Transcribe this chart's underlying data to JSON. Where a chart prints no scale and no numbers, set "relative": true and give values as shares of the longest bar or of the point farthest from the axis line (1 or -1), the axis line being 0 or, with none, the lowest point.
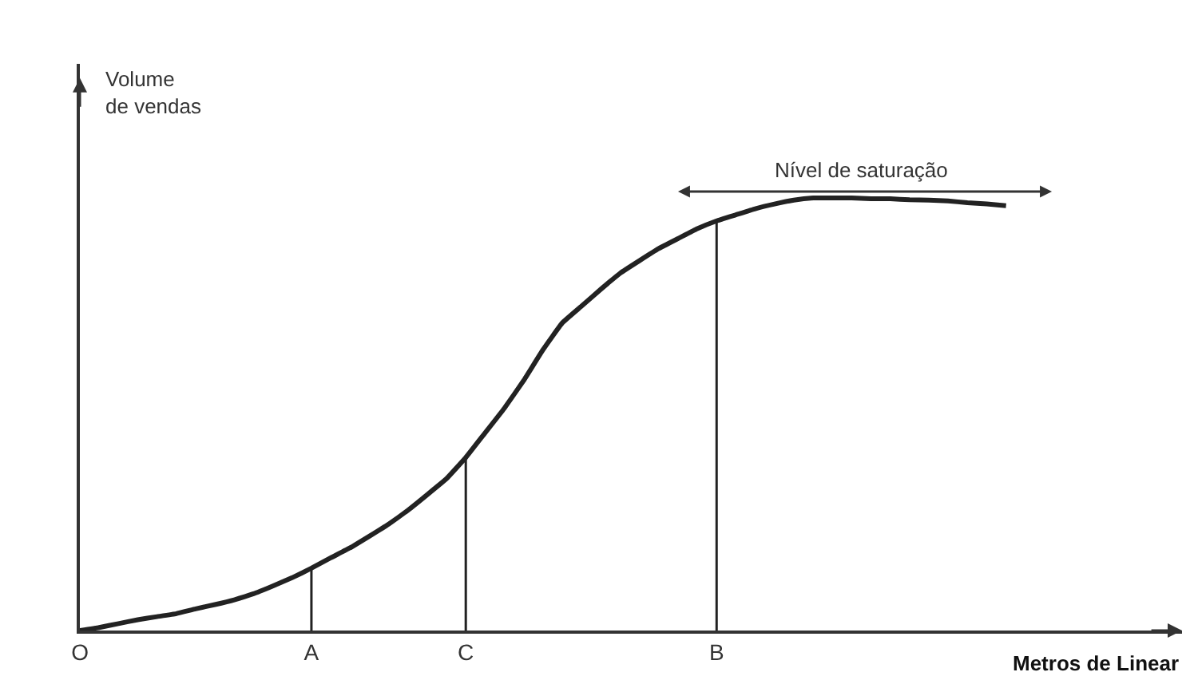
{
  "chart_data": {
    "type": "line",
    "relative": true,
    "xlabel": "Metros de Linear",
    "ylabel": "Volume\nde vendas",
    "categories": [
      "O",
      null,
      null,
      null,
      null,
      null,
      null,
      null,
      null,
      null,
      null,
      null,
      "A",
      null,
      null,
      null,
      null,
      null,
      null,
      null,
      "C",
      null,
      null,
      null,
      null,
      null,
      null,
      null,
      null,
      null,
      null,
      null,
      null,
      "B",
      null,
      null,
      null,
      null,
      null,
      null,
      null,
      null,
      null,
      null,
      null,
      null,
      null,
      null,
      null
    ],
    "series": [
      {
        "color": "#222222",
        "values": [
          0,
          0.007,
          0.016,
          0.025,
          0.032,
          0.039,
          0.05,
          0.06,
          0.071,
          0.085,
          0.103,
          0.122,
          0.144,
          0.168,
          0.191,
          0.218,
          0.246,
          0.278,
          0.314,
          0.351,
          0.4,
          0.457,
          0.514,
          0.578,
          0.649,
          0.711,
          0.75,
          0.789,
          0.826,
          0.855,
          0.883,
          0.906,
          0.929,
          0.947,
          0.961,
          0.975,
          0.986,
          0.995,
          1,
          1,
          1,
          0.998,
          0.998,
          0.996,
          0.995,
          0.993,
          0.989,
          0.986,
          0.982
        ]
      }
    ],
    "ref_lines": [
      {
        "axis": "x",
        "value": "A",
        "color": "#222222"
      },
      {
        "axis": "x",
        "value": "C",
        "color": "#222222"
      },
      {
        "axis": "x",
        "value": "B",
        "color": "#222222"
      }
    ],
    "annotations": [
      "Nível de saturação"
    ],
    "marker": "none",
    "line_style": "solid"
  }
}
